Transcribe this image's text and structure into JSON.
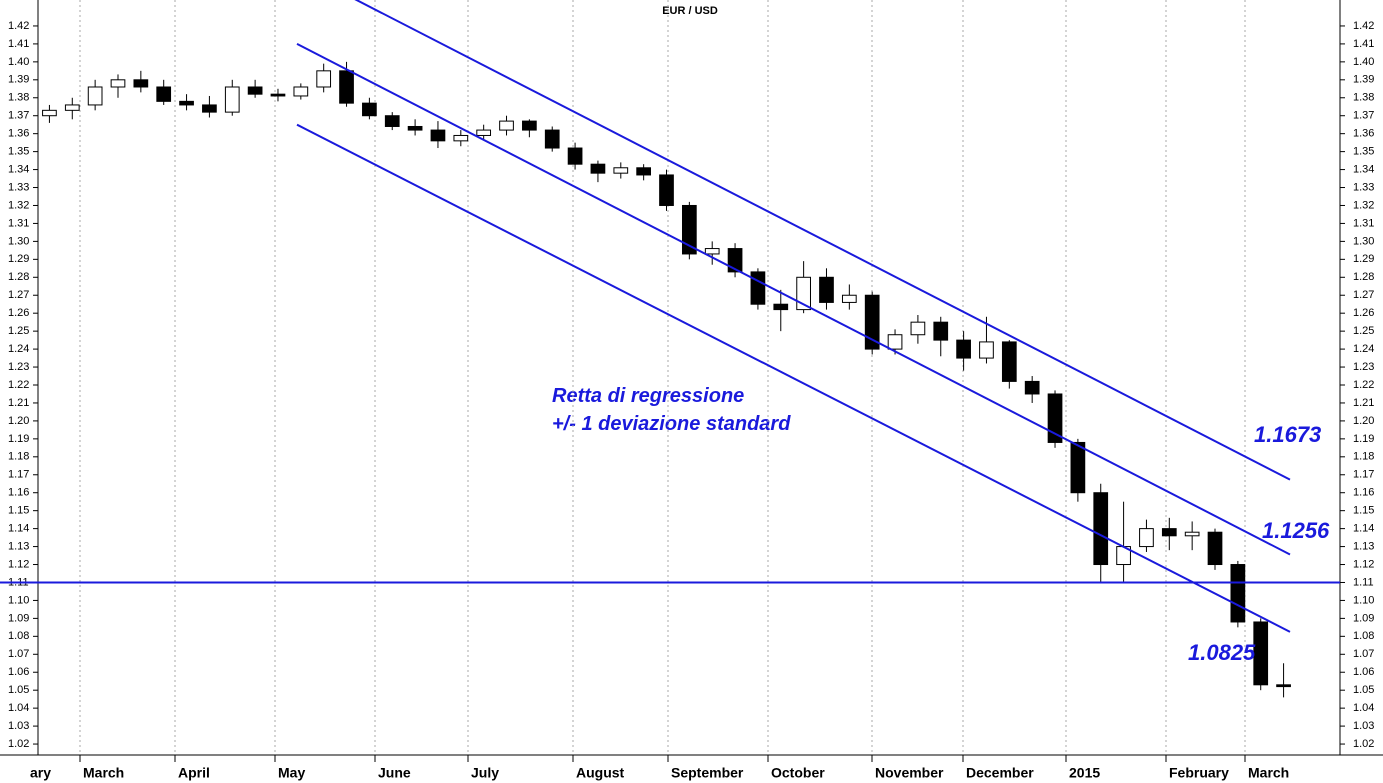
{
  "chart_data": {
    "type": "candlestick",
    "title": "EUR / USD",
    "categories": [
      "ary",
      "March",
      "April",
      "May",
      "June",
      "July",
      "August",
      "September",
      "October",
      "November",
      "December",
      "2015",
      "February",
      "March"
    ],
    "open": [
      1.37,
      1.373,
      1.376,
      1.386,
      1.39,
      1.386,
      1.378,
      1.376,
      1.372,
      1.386,
      1.382,
      1.381,
      1.386,
      1.395,
      1.377,
      1.37,
      1.364,
      1.362,
      1.356,
      1.359,
      1.362,
      1.367,
      1.362,
      1.352,
      1.343,
      1.338,
      1.341,
      1.337,
      1.32,
      1.293,
      1.296,
      1.283,
      1.265,
      1.262,
      1.28,
      1.266,
      1.27,
      1.24,
      1.248,
      1.255,
      1.245,
      1.235,
      1.244,
      1.222,
      1.215,
      1.188,
      1.16,
      1.12,
      1.13,
      1.14,
      1.136,
      1.138,
      1.12,
      1.088,
      1.053
    ],
    "high": [
      1.376,
      1.38,
      1.39,
      1.393,
      1.395,
      1.39,
      1.382,
      1.381,
      1.39,
      1.39,
      1.385,
      1.388,
      1.399,
      1.4,
      1.38,
      1.372,
      1.368,
      1.367,
      1.362,
      1.365,
      1.37,
      1.368,
      1.364,
      1.355,
      1.345,
      1.344,
      1.343,
      1.34,
      1.322,
      1.3,
      1.299,
      1.285,
      1.273,
      1.289,
      1.285,
      1.276,
      1.272,
      1.251,
      1.259,
      1.258,
      1.25,
      1.258,
      1.245,
      1.225,
      1.217,
      1.19,
      1.165,
      1.155,
      1.145,
      1.146,
      1.144,
      1.14,
      1.122,
      1.09,
      1.065
    ],
    "low": [
      1.366,
      1.368,
      1.373,
      1.38,
      1.383,
      1.376,
      1.373,
      1.369,
      1.37,
      1.38,
      1.378,
      1.379,
      1.383,
      1.375,
      1.368,
      1.362,
      1.359,
      1.352,
      1.353,
      1.357,
      1.359,
      1.358,
      1.35,
      1.34,
      1.333,
      1.335,
      1.334,
      1.317,
      1.29,
      1.287,
      1.28,
      1.262,
      1.25,
      1.26,
      1.262,
      1.262,
      1.237,
      1.237,
      1.243,
      1.236,
      1.228,
      1.232,
      1.218,
      1.21,
      1.185,
      1.155,
      1.11,
      1.11,
      1.127,
      1.128,
      1.128,
      1.117,
      1.085,
      1.05,
      1.046
    ],
    "close": [
      1.373,
      1.376,
      1.386,
      1.39,
      1.386,
      1.378,
      1.376,
      1.372,
      1.386,
      1.382,
      1.381,
      1.386,
      1.395,
      1.377,
      1.37,
      1.364,
      1.362,
      1.356,
      1.359,
      1.362,
      1.367,
      1.362,
      1.352,
      1.343,
      1.338,
      1.341,
      1.337,
      1.32,
      1.293,
      1.296,
      1.283,
      1.265,
      1.262,
      1.28,
      1.266,
      1.27,
      1.24,
      1.248,
      1.255,
      1.245,
      1.235,
      1.244,
      1.222,
      1.215,
      1.188,
      1.16,
      1.12,
      1.13,
      1.14,
      1.136,
      1.138,
      1.12,
      1.088,
      1.053,
      1.052
    ],
    "ylim": [
      1.01,
      1.43
    ],
    "yticks": [
      1.02,
      1.03,
      1.04,
      1.05,
      1.06,
      1.07,
      1.08,
      1.09,
      {
        "value": 1.1,
        "label": "1.10"
      },
      1.11,
      1.12,
      1.13,
      1.14,
      1.15,
      1.16,
      1.17,
      1.18,
      1.19,
      {
        "value": 1.2,
        "label": "1.20"
      },
      1.21,
      1.22,
      1.23,
      1.24,
      1.25,
      1.26,
      1.27,
      1.28,
      1.29,
      {
        "value": 1.3,
        "label": "1.30"
      },
      1.31,
      1.32,
      1.33,
      1.34,
      1.35,
      1.36,
      1.37,
      1.38,
      1.39,
      {
        "value": 1.4,
        "label": "1.40"
      },
      1.41,
      1.42
    ],
    "grid": true,
    "hline": 1.11,
    "line_color": "#1a1adc",
    "annotation": [
      "Retta di regressione",
      "+/- 1 deviazione standard"
    ],
    "channel": [
      {
        "start": 1.4515,
        "end": 1.1673
      },
      {
        "start": 1.41,
        "end": 1.1256
      },
      {
        "start": 1.365,
        "end": 1.0825
      }
    ]
  }
}
